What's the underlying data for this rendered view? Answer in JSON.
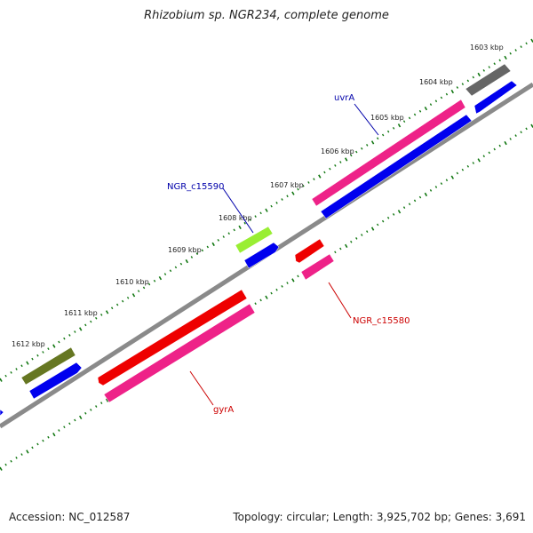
{
  "title": "Rhizobium sp. NGR234, complete genome",
  "footer": {
    "accession": "Accession: NC_012587",
    "summary": "Topology: circular; Length: 3,925,702 bp; Genes: 3,691"
  },
  "colors": {
    "backbone": "#8a8a8a",
    "tick": "#117711",
    "label_forward": "#0000aa",
    "label_reverse": "#cc0000",
    "cds_blue": "#0000ee",
    "gene_magenta": "#ee2288",
    "gene_red": "#ee0000",
    "gene_gray": "#666666",
    "gene_lime": "#99ee33",
    "gene_olive": "#667722"
  },
  "scale_labels": [
    "1603 kbp",
    "1604 kbp",
    "1605 kbp",
    "1606 kbp",
    "1607 kbp",
    "1608 kbp",
    "1609 kbp",
    "1610 kbp",
    "1611 kbp",
    "1612 kbp"
  ],
  "gene_labels": [
    {
      "name": "uvrA",
      "strand": "forward"
    },
    {
      "name": "NGR_c15590",
      "strand": "forward"
    },
    {
      "name": "NGR_c15580",
      "strand": "reverse"
    },
    {
      "name": "gyrA",
      "strand": "reverse"
    }
  ]
}
